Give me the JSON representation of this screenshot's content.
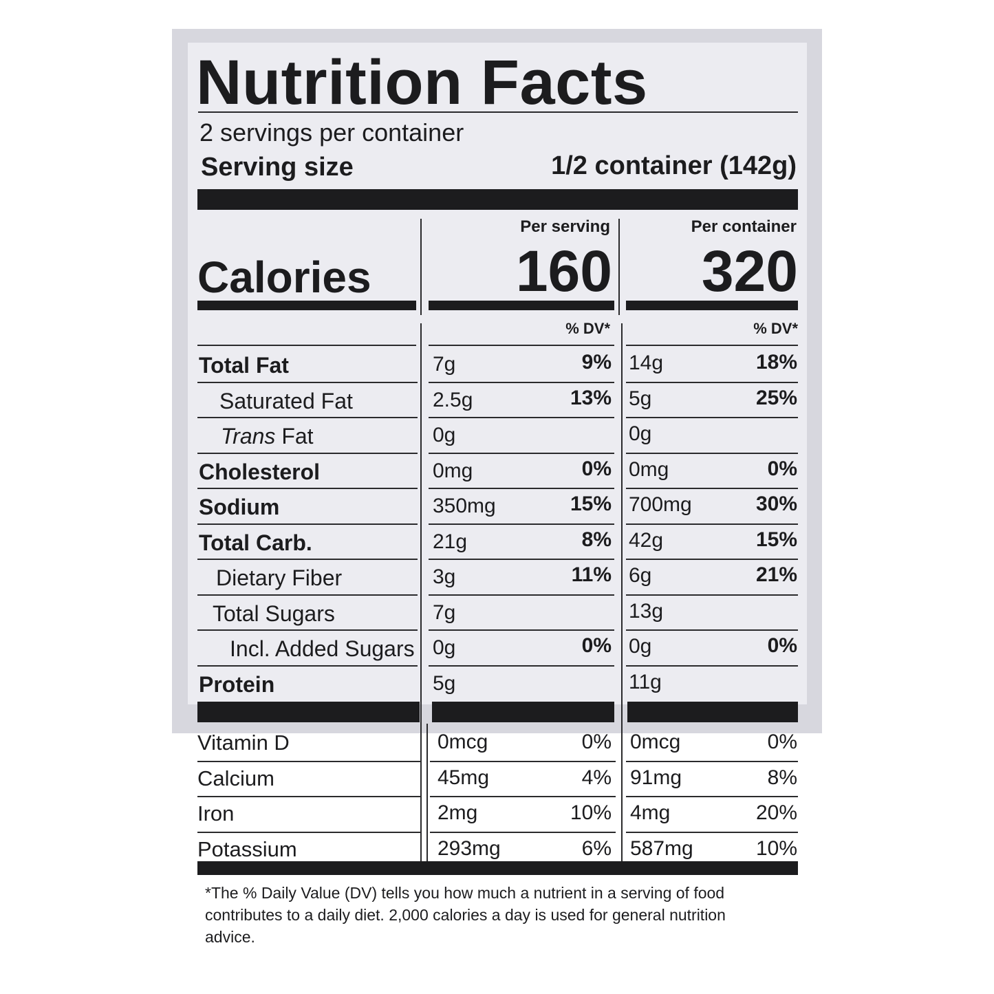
{
  "panel": {
    "title": "Nutrition Facts",
    "servings_per_container": "2 servings per container",
    "serving_size_label": "Serving size",
    "serving_size_value": "1/2 container (142g)",
    "calories_label": "Calories",
    "per_serving_label": "Per serving",
    "per_container_label": "Per container",
    "calories_per_serving": "160",
    "calories_per_container": "320",
    "dv_header": "% DV*"
  },
  "nutrients": [
    {
      "name": "Total Fat",
      "serving": "7g",
      "serving_dv": "9%",
      "container": "14g",
      "container_dv": "18%"
    },
    {
      "name": "Saturated Fat",
      "serving": "2.5g",
      "serving_dv": "13%",
      "container": "5g",
      "container_dv": "25%"
    },
    {
      "name_italic": "Trans",
      "name": " Fat",
      "serving": "0g",
      "serving_dv": "",
      "container": "0g",
      "container_dv": ""
    },
    {
      "name": "Cholesterol",
      "serving": "0mg",
      "serving_dv": "0%",
      "container": "0mg",
      "container_dv": "0%"
    },
    {
      "name": "Sodium",
      "serving": "350mg",
      "serving_dv": "15%",
      "container": "700mg",
      "container_dv": "30%"
    },
    {
      "name": "Total Carb.",
      "serving": "21g",
      "serving_dv": "8%",
      "container": "42g",
      "container_dv": "15%"
    },
    {
      "name": "Dietary Fiber",
      "serving": "3g",
      "serving_dv": "11%",
      "container": "6g",
      "container_dv": "21%"
    },
    {
      "name": "Total Sugars",
      "serving": "7g",
      "serving_dv": "",
      "container": "13g",
      "container_dv": ""
    },
    {
      "name": "Incl. Added Sugars",
      "serving": "0g",
      "serving_dv": "0%",
      "container": "0g",
      "container_dv": "0%"
    },
    {
      "name": "Protein",
      "serving": "5g",
      "serving_dv": "",
      "container": "11g",
      "container_dv": ""
    }
  ],
  "vitamins": [
    {
      "name": "Vitamin D",
      "serving": "0mcg",
      "serving_dv": "0%",
      "container": "0mcg",
      "container_dv": "0%"
    },
    {
      "name": "Calcium",
      "serving": "45mg",
      "serving_dv": "4%",
      "container": "91mg",
      "container_dv": "8%"
    },
    {
      "name": "Iron",
      "serving": "2mg",
      "serving_dv": "10%",
      "container": "4mg",
      "container_dv": "20%"
    },
    {
      "name": "Potassium",
      "serving": "293mg",
      "serving_dv": "6%",
      "container": "587mg",
      "container_dv": "10%"
    }
  ],
  "footnote": "*The % Daily Value (DV) tells you how much a nutrient in a serving of food contributes to a daily diet. 2,000 calories a day is used for general nutrition advice."
}
